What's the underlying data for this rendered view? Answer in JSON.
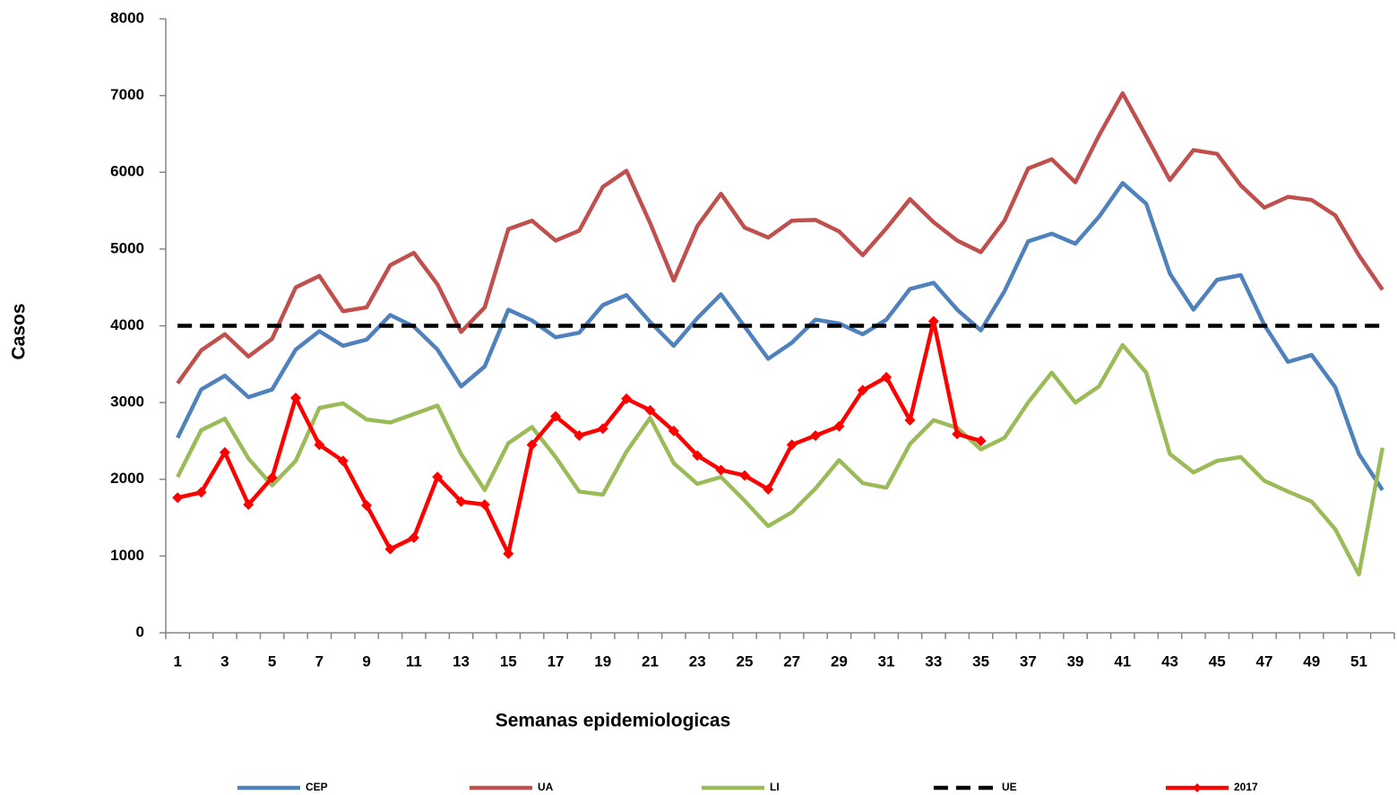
{
  "chart_data": {
    "type": "line",
    "x_label": "Semanas epidemiologicas",
    "y_label": "Casos",
    "categories": [
      1,
      null,
      3,
      null,
      5,
      null,
      7,
      null,
      9,
      null,
      11,
      null,
      13,
      null,
      15,
      null,
      17,
      null,
      19,
      null,
      21,
      null,
      23,
      null,
      25,
      null,
      27,
      null,
      29,
      null,
      31,
      null,
      33,
      null,
      35,
      null,
      37,
      null,
      39,
      null,
      41,
      null,
      43,
      null,
      45,
      null,
      47,
      null,
      49,
      null,
      51,
      null
    ],
    "ylim": [
      0,
      8000
    ],
    "yticks": [
      0,
      1000,
      2000,
      3000,
      4000,
      5000,
      6000,
      7000,
      8000
    ],
    "legend": "bottom",
    "series": [
      {
        "name": "CEP",
        "color": "#4f81bd",
        "values": [
          2540,
          3170,
          3350,
          3070,
          3170,
          3690,
          3930,
          3740,
          3820,
          4140,
          3990,
          3690,
          3210,
          3470,
          4210,
          4070,
          3850,
          3910,
          4270,
          4400,
          4050,
          3740,
          4100,
          4410,
          3990,
          3570,
          3780,
          4080,
          4030,
          3890,
          4080,
          4480,
          4560,
          4210,
          3940,
          4450,
          5100,
          5200,
          5070,
          5420,
          5860,
          5590,
          4680,
          4210,
          4600,
          4660,
          4010,
          3530,
          3620,
          3200,
          2330,
          1860
        ]
      },
      {
        "name": "UA",
        "color": "#c0504d",
        "values": [
          3250,
          3680,
          3890,
          3600,
          3830,
          4500,
          4650,
          4190,
          4240,
          4790,
          4950,
          4540,
          3920,
          4240,
          5260,
          5370,
          5110,
          5240,
          5810,
          6020,
          5340,
          4590,
          5300,
          5720,
          5280,
          5150,
          5370,
          5380,
          5230,
          4920,
          5270,
          5650,
          5350,
          5110,
          4960,
          5370,
          6050,
          6170,
          5870,
          6480,
          7030,
          6470,
          5900,
          6290,
          6240,
          5830,
          5540,
          5680,
          5640,
          5440,
          4920,
          4470
        ]
      },
      {
        "name": "LI",
        "color": "#9bbb59",
        "values": [
          2030,
          2640,
          2790,
          2270,
          1920,
          2240,
          2930,
          2990,
          2780,
          2740,
          2850,
          2960,
          2330,
          1860,
          2470,
          2680,
          2290,
          1840,
          1800,
          2360,
          2800,
          2210,
          1940,
          2030,
          1720,
          1390,
          1570,
          1880,
          2250,
          1950,
          1890,
          2460,
          2770,
          2670,
          2390,
          2540,
          3000,
          3390,
          3000,
          3210,
          3750,
          3390,
          2330,
          2090,
          2240,
          2290,
          1980,
          1840,
          1710,
          1350,
          760,
          2410
        ]
      },
      {
        "name": "UE",
        "color": "#000000",
        "dash": true,
        "values": [
          4000,
          4000,
          4000,
          4000,
          4000,
          4000,
          4000,
          4000,
          4000,
          4000,
          4000,
          4000,
          4000,
          4000,
          4000,
          4000,
          4000,
          4000,
          4000,
          4000,
          4000,
          4000,
          4000,
          4000,
          4000,
          4000,
          4000,
          4000,
          4000,
          4000,
          4000,
          4000,
          4000,
          4000,
          4000,
          4000,
          4000,
          4000,
          4000,
          4000,
          4000,
          4000,
          4000,
          4000,
          4000,
          4000,
          4000,
          4000,
          4000,
          4000,
          4000,
          4000
        ]
      },
      {
        "name": "2017",
        "color": "#ff0000",
        "marker": "diamond",
        "values": [
          1760,
          1830,
          2350,
          1670,
          2020,
          3060,
          2450,
          2240,
          1660,
          1090,
          1240,
          2030,
          1710,
          1670,
          1030,
          2450,
          2820,
          2570,
          2660,
          3050,
          2900,
          2630,
          2310,
          2120,
          2050,
          1870,
          2450,
          2570,
          2690,
          3160,
          3330,
          2770,
          4060,
          2590,
          2500,
          null,
          null,
          null,
          null,
          null,
          null,
          null,
          null,
          null,
          null,
          null,
          null,
          null,
          null,
          null,
          null,
          null
        ]
      }
    ]
  }
}
